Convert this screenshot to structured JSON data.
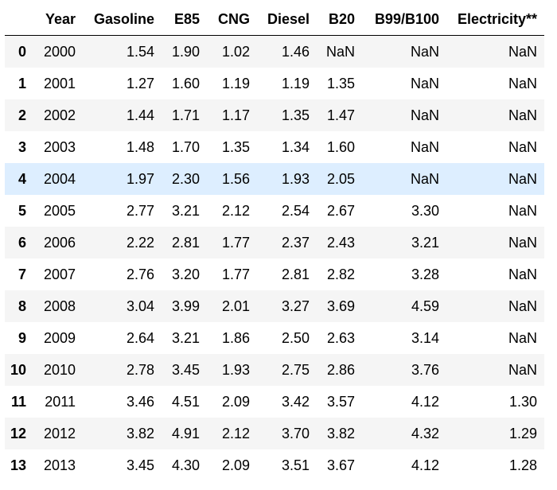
{
  "table": {
    "index_header": "",
    "columns": [
      "Year",
      "Gasoline",
      "E85",
      "CNG",
      "Diesel",
      "B20",
      "B99/B100",
      "Electricity**"
    ],
    "hovered_row": 4,
    "rows": [
      {
        "index": "0",
        "values": [
          "2000",
          "1.54",
          "1.90",
          "1.02",
          "1.46",
          "NaN",
          "NaN",
          "NaN"
        ]
      },
      {
        "index": "1",
        "values": [
          "2001",
          "1.27",
          "1.60",
          "1.19",
          "1.19",
          "1.35",
          "NaN",
          "NaN"
        ]
      },
      {
        "index": "2",
        "values": [
          "2002",
          "1.44",
          "1.71",
          "1.17",
          "1.35",
          "1.47",
          "NaN",
          "NaN"
        ]
      },
      {
        "index": "3",
        "values": [
          "2003",
          "1.48",
          "1.70",
          "1.35",
          "1.34",
          "1.60",
          "NaN",
          "NaN"
        ]
      },
      {
        "index": "4",
        "values": [
          "2004",
          "1.97",
          "2.30",
          "1.56",
          "1.93",
          "2.05",
          "NaN",
          "NaN"
        ]
      },
      {
        "index": "5",
        "values": [
          "2005",
          "2.77",
          "3.21",
          "2.12",
          "2.54",
          "2.67",
          "3.30",
          "NaN"
        ]
      },
      {
        "index": "6",
        "values": [
          "2006",
          "2.22",
          "2.81",
          "1.77",
          "2.37",
          "2.43",
          "3.21",
          "NaN"
        ]
      },
      {
        "index": "7",
        "values": [
          "2007",
          "2.76",
          "3.20",
          "1.77",
          "2.81",
          "2.82",
          "3.28",
          "NaN"
        ]
      },
      {
        "index": "8",
        "values": [
          "2008",
          "3.04",
          "3.99",
          "2.01",
          "3.27",
          "3.69",
          "4.59",
          "NaN"
        ]
      },
      {
        "index": "9",
        "values": [
          "2009",
          "2.64",
          "3.21",
          "1.86",
          "2.50",
          "2.63",
          "3.14",
          "NaN"
        ]
      },
      {
        "index": "10",
        "values": [
          "2010",
          "2.78",
          "3.45",
          "1.93",
          "2.75",
          "2.86",
          "3.76",
          "NaN"
        ]
      },
      {
        "index": "11",
        "values": [
          "2011",
          "3.46",
          "4.51",
          "2.09",
          "3.42",
          "3.57",
          "4.12",
          "1.30"
        ]
      },
      {
        "index": "12",
        "values": [
          "2012",
          "3.82",
          "4.91",
          "2.12",
          "3.70",
          "3.82",
          "4.32",
          "1.29"
        ]
      },
      {
        "index": "13",
        "values": [
          "2013",
          "3.45",
          "4.30",
          "2.09",
          "3.51",
          "3.67",
          "4.12",
          "1.28"
        ]
      }
    ]
  }
}
